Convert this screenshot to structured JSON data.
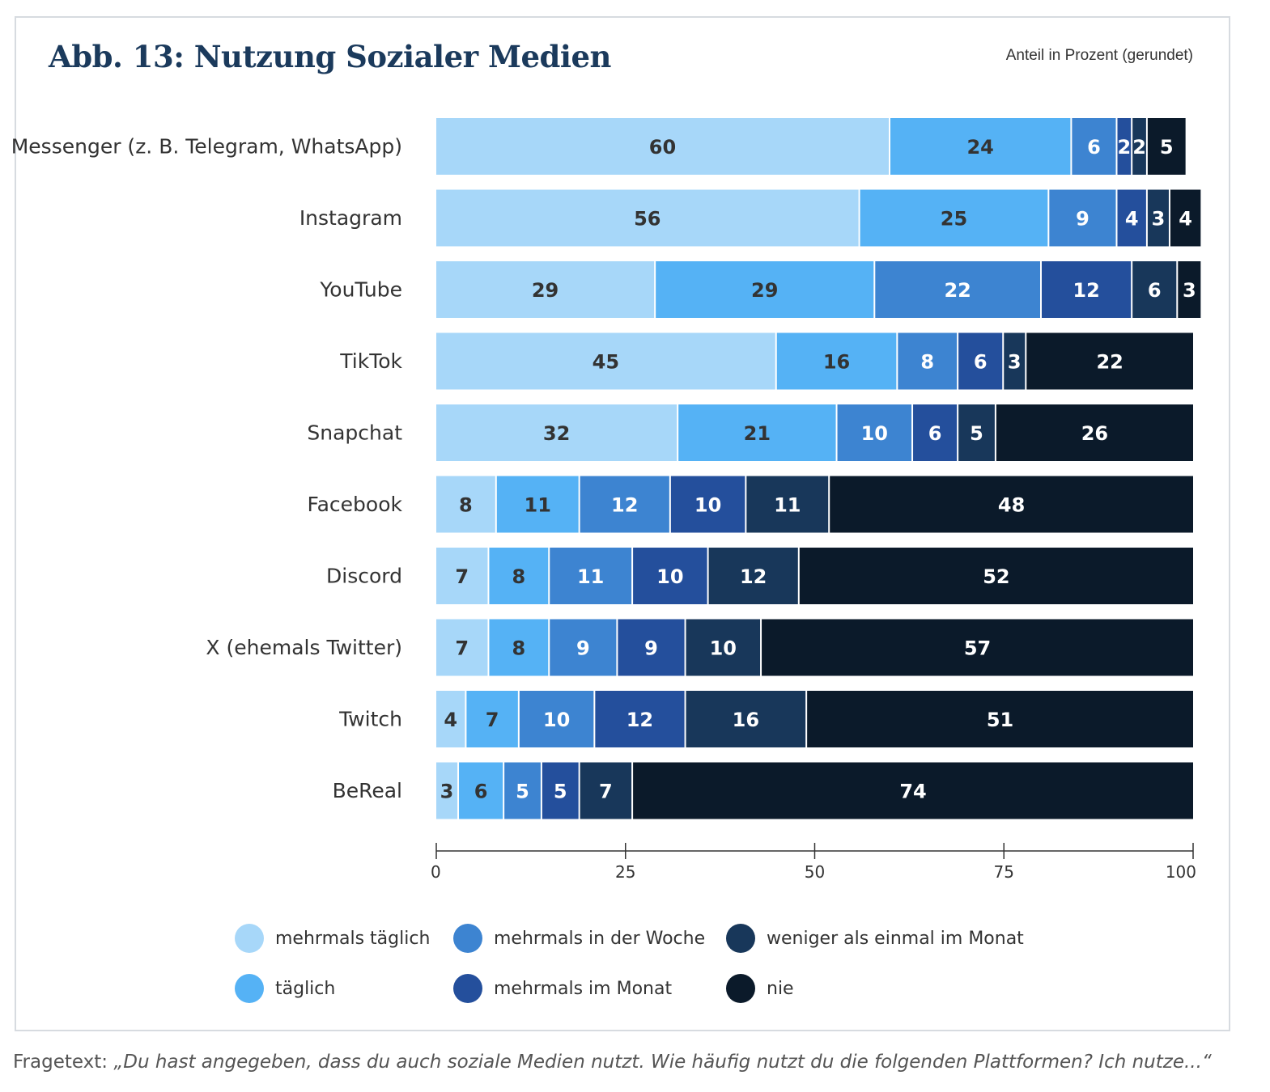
{
  "header": {
    "title": "Abb. 13: Nutzung Sozialer Medien",
    "unit_note": "Anteil in Prozent (gerundet)"
  },
  "chart_data": {
    "type": "bar",
    "orientation": "horizontal",
    "stacked": true,
    "title": "Abb. 13: Nutzung Sozialer Medien",
    "xlabel": "Anteil in Prozent (gerundet)",
    "ylabel": "",
    "xlim": [
      0,
      100
    ],
    "xticks": [
      "0",
      "25",
      "50",
      "75",
      "100"
    ],
    "legend_position": "bottom",
    "categories": [
      "Messenger (z. B. Telegram, WhatsApp)",
      "Instagram",
      "YouTube",
      "TikTok",
      "Snapchat",
      "Facebook",
      "Discord",
      "X (ehemals Twitter)",
      "Twitch",
      "BeReal"
    ],
    "series": [
      {
        "name": "mehrmals täglich",
        "color": "#a7d7f9",
        "text_color": "#333333",
        "values": [
          60,
          56,
          29,
          45,
          32,
          8,
          7,
          7,
          4,
          3
        ]
      },
      {
        "name": "täglich",
        "color": "#55b2f5",
        "text_color": "#333333",
        "values": [
          24,
          25,
          29,
          16,
          21,
          11,
          8,
          8,
          7,
          6
        ]
      },
      {
        "name": "mehrmals in der Woche",
        "color": "#3d84d1",
        "text_color": "#ffffff",
        "values": [
          6,
          9,
          22,
          8,
          10,
          12,
          11,
          9,
          10,
          5
        ]
      },
      {
        "name": "mehrmals im Monat",
        "color": "#244f9c",
        "text_color": "#ffffff",
        "values": [
          2,
          4,
          12,
          6,
          6,
          10,
          10,
          9,
          12,
          5
        ]
      },
      {
        "name": "weniger als einmal im Monat",
        "color": "#18375a",
        "text_color": "#ffffff",
        "values": [
          2,
          3,
          6,
          3,
          5,
          11,
          12,
          10,
          16,
          7
        ]
      },
      {
        "name": "nie",
        "color": "#0b1a2a",
        "text_color": "#ffffff",
        "values": [
          5,
          4,
          3,
          22,
          26,
          48,
          52,
          57,
          51,
          74
        ]
      }
    ]
  },
  "legend": {
    "items": [
      {
        "label": "mehrmals täglich",
        "color": "#a7d7f9"
      },
      {
        "label": "täglich",
        "color": "#55b2f5"
      },
      {
        "label": "mehrmals in der Woche",
        "color": "#3d84d1"
      },
      {
        "label": "mehrmals im Monat",
        "color": "#244f9c"
      },
      {
        "label": "weniger als einmal im Monat",
        "color": "#18375a"
      },
      {
        "label": "nie",
        "color": "#0b1a2a"
      }
    ]
  },
  "footnote": {
    "prefix": "Fragetext: ",
    "quote": "„Du hast angegeben, dass du auch soziale Medien nutzt. Wie häufig nutzt du die folgenden Plattformen? Ich nutze...“"
  }
}
